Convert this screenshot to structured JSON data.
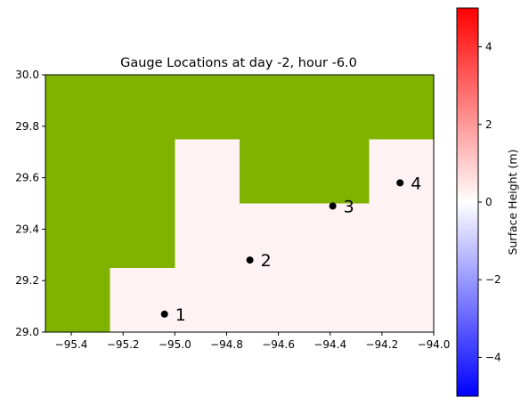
{
  "chart_data": {
    "type": "heatmap",
    "title": "Gauge Locations at day  -2, hour -6.0",
    "xlim": [
      -95.5,
      -94.0
    ],
    "ylim": [
      29.0,
      30.0
    ],
    "xticks": [
      -95.4,
      -95.2,
      -95.0,
      -94.8,
      -94.6,
      -94.4,
      -94.2,
      -94.0
    ],
    "xtick_labels": [
      "−95.4",
      "−95.2",
      "−95.0",
      "−94.8",
      "−94.6",
      "−94.4",
      "−94.2",
      "−94.0"
    ],
    "yticks": [
      29.0,
      29.2,
      29.4,
      29.6,
      29.8,
      30.0
    ],
    "ytick_labels": [
      "29.0",
      "29.2",
      "29.4",
      "29.6",
      "29.8",
      "30.0"
    ],
    "grid": false,
    "land_color": "#80b300",
    "water_color": "#fff2f2",
    "water_regions": [
      {
        "x0": -95.25,
        "x1": -94.0,
        "y0": 29.0,
        "y1": 29.25
      },
      {
        "x0": -95.0,
        "x1": -94.0,
        "y0": 29.25,
        "y1": 29.5
      },
      {
        "x0": -95.0,
        "x1": -94.75,
        "y0": 29.5,
        "y1": 29.75
      },
      {
        "x0": -94.25,
        "x1": -94.0,
        "y0": 29.5,
        "y1": 29.75
      }
    ],
    "gauges": [
      {
        "label": "1",
        "x": -95.04,
        "y": 29.07
      },
      {
        "label": "2",
        "x": -94.71,
        "y": 29.28
      },
      {
        "label": "3",
        "x": -94.39,
        "y": 29.49
      },
      {
        "label": "4",
        "x": -94.13,
        "y": 29.58
      }
    ],
    "colorbar": {
      "label": "Surface Height (m)",
      "range": [
        -5,
        5
      ],
      "ticks": [
        -4,
        -2,
        0,
        2,
        4
      ],
      "tick_labels": [
        "−4",
        "−2",
        "0",
        "2",
        "4"
      ],
      "colormap": [
        "#0000ff",
        "#ffffff",
        "#ff0000"
      ]
    }
  }
}
